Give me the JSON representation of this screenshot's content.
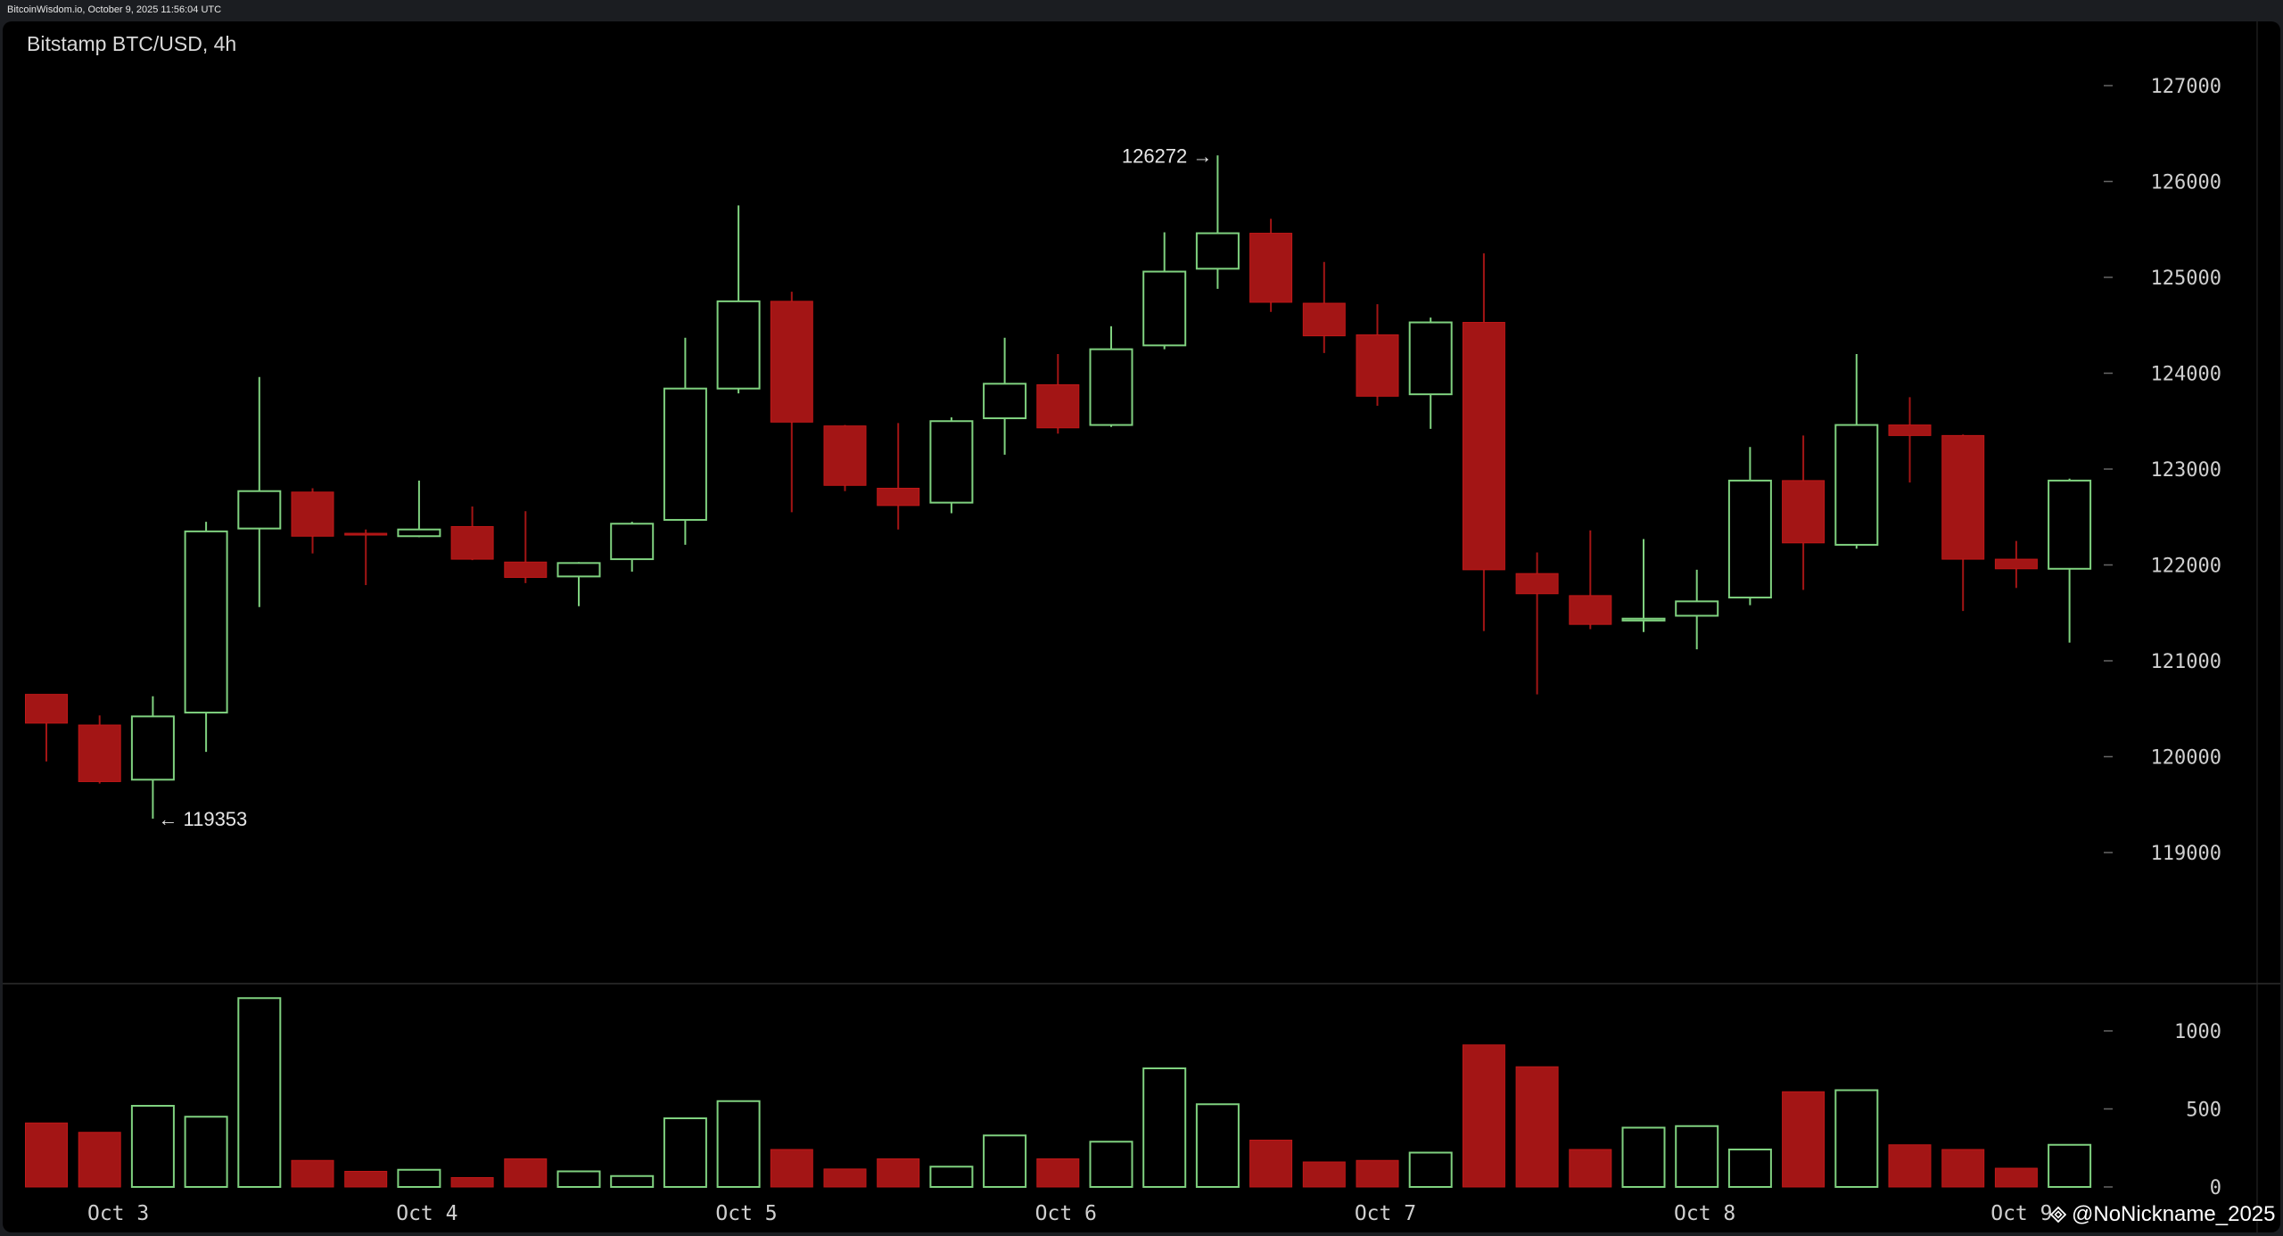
{
  "header": {
    "source": "BitcoinWisdom.io, October 9, 2025 11:56:04 UTC"
  },
  "watermark": {
    "text": "@NoNickname_2025",
    "icon": "binance-square-logo-icon"
  },
  "colors": {
    "up": "#7fd17f",
    "down": "#a31515",
    "background": "#000000",
    "axis_text": "#cfcfcf",
    "divider": "#444444"
  },
  "chart_data": {
    "type": "candlestick",
    "title": "Bitstamp BTC/USD, 4h",
    "x_ticks": [
      {
        "label": "Oct 3",
        "index": 1.35
      },
      {
        "label": "Oct 4",
        "index": 7.15
      },
      {
        "label": "Oct 5",
        "index": 13.15
      },
      {
        "label": "Oct 6",
        "index": 19.15
      },
      {
        "label": "Oct 7",
        "index": 25.15
      },
      {
        "label": "Oct 8",
        "index": 31.15
      },
      {
        "label": "Oct 9",
        "index": 37.1
      }
    ],
    "price_axis": {
      "ticks": [
        119000,
        120000,
        121000,
        122000,
        123000,
        124000,
        125000,
        126000,
        127000
      ],
      "range": [
        117900,
        127700
      ]
    },
    "volume_axis": {
      "ticks": [
        0,
        500,
        1000
      ],
      "range": [
        0,
        1300
      ]
    },
    "annotations": [
      {
        "text": "← 119353",
        "price": 119353,
        "index": 2,
        "side": "right"
      },
      {
        "text": "126272 →",
        "price": 126272,
        "index": 22,
        "side": "left"
      }
    ],
    "candles": [
      {
        "o": 120650,
        "h": 120650,
        "l": 119950,
        "c": 120350,
        "v": 410
      },
      {
        "o": 120330,
        "h": 120430,
        "l": 119720,
        "c": 119740,
        "v": 350
      },
      {
        "o": 119760,
        "h": 120630,
        "l": 119353,
        "c": 120420,
        "v": 520
      },
      {
        "o": 120460,
        "h": 122450,
        "l": 120050,
        "c": 122350,
        "v": 450
      },
      {
        "o": 122380,
        "h": 123960,
        "l": 121560,
        "c": 122770,
        "v": 1210
      },
      {
        "o": 122760,
        "h": 122800,
        "l": 122120,
        "c": 122300,
        "v": 170
      },
      {
        "o": 122330,
        "h": 122370,
        "l": 121790,
        "c": 122320,
        "v": 100
      },
      {
        "o": 122300,
        "h": 122880,
        "l": 122290,
        "c": 122370,
        "v": 110
      },
      {
        "o": 122400,
        "h": 122610,
        "l": 122050,
        "c": 122060,
        "v": 60
      },
      {
        "o": 122030,
        "h": 122560,
        "l": 121810,
        "c": 121870,
        "v": 180
      },
      {
        "o": 121880,
        "h": 122030,
        "l": 121570,
        "c": 122020,
        "v": 100
      },
      {
        "o": 122060,
        "h": 122450,
        "l": 121930,
        "c": 122430,
        "v": 70
      },
      {
        "o": 122470,
        "h": 124370,
        "l": 122210,
        "c": 123840,
        "v": 440
      },
      {
        "o": 123840,
        "h": 125750,
        "l": 123790,
        "c": 124750,
        "v": 550
      },
      {
        "o": 124750,
        "h": 124850,
        "l": 122550,
        "c": 123490,
        "v": 240
      },
      {
        "o": 123450,
        "h": 123460,
        "l": 122770,
        "c": 122830,
        "v": 115
      },
      {
        "o": 122800,
        "h": 123480,
        "l": 122370,
        "c": 122620,
        "v": 180
      },
      {
        "o": 122650,
        "h": 123540,
        "l": 122540,
        "c": 123500,
        "v": 130
      },
      {
        "o": 123530,
        "h": 124370,
        "l": 123150,
        "c": 123890,
        "v": 330
      },
      {
        "o": 123880,
        "h": 124200,
        "l": 123370,
        "c": 123430,
        "v": 180
      },
      {
        "o": 123460,
        "h": 124490,
        "l": 123440,
        "c": 124250,
        "v": 290
      },
      {
        "o": 124290,
        "h": 125470,
        "l": 124250,
        "c": 125060,
        "v": 760
      },
      {
        "o": 125090,
        "h": 126272,
        "l": 124880,
        "c": 125460,
        "v": 530
      },
      {
        "o": 125460,
        "h": 125610,
        "l": 124640,
        "c": 124740,
        "v": 300
      },
      {
        "o": 124730,
        "h": 125160,
        "l": 124210,
        "c": 124390,
        "v": 160
      },
      {
        "o": 124400,
        "h": 124720,
        "l": 123660,
        "c": 123760,
        "v": 170
      },
      {
        "o": 123780,
        "h": 124580,
        "l": 123420,
        "c": 124530,
        "v": 220
      },
      {
        "o": 124530,
        "h": 125250,
        "l": 121310,
        "c": 121950,
        "v": 910
      },
      {
        "o": 121910,
        "h": 122130,
        "l": 120650,
        "c": 121700,
        "v": 770
      },
      {
        "o": 121680,
        "h": 122360,
        "l": 121330,
        "c": 121380,
        "v": 240
      },
      {
        "o": 121420,
        "h": 122270,
        "l": 121300,
        "c": 121440,
        "v": 380
      },
      {
        "o": 121470,
        "h": 121950,
        "l": 121120,
        "c": 121620,
        "v": 390
      },
      {
        "o": 121660,
        "h": 123230,
        "l": 121580,
        "c": 122880,
        "v": 240
      },
      {
        "o": 122880,
        "h": 123350,
        "l": 121740,
        "c": 122230,
        "v": 610
      },
      {
        "o": 122210,
        "h": 124200,
        "l": 122170,
        "c": 123460,
        "v": 620
      },
      {
        "o": 123460,
        "h": 123750,
        "l": 122860,
        "c": 123350,
        "v": 270
      },
      {
        "o": 123350,
        "h": 123360,
        "l": 121520,
        "c": 122060,
        "v": 240
      },
      {
        "o": 122060,
        "h": 122250,
        "l": 121760,
        "c": 121960,
        "v": 120
      },
      {
        "o": 121960,
        "h": 122900,
        "l": 121190,
        "c": 122880,
        "v": 270
      }
    ]
  }
}
